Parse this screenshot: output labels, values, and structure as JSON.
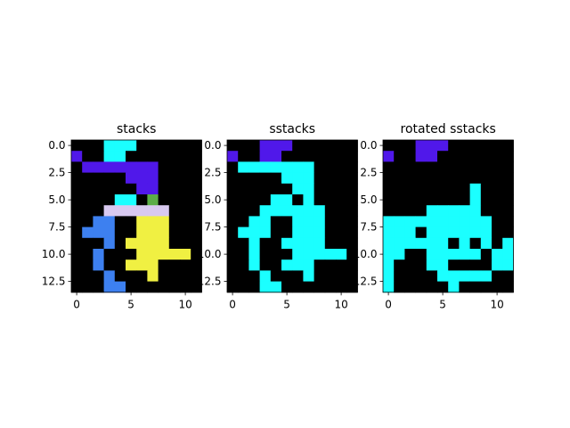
{
  "figure": {
    "background": "#ffffff"
  },
  "chart_data": [
    {
      "type": "heatmap",
      "title": "stacks",
      "xticks": [
        0,
        5,
        10
      ],
      "yticks": [
        "0.0",
        "2.5",
        "5.0",
        "7.5",
        "10.0",
        "12.5"
      ],
      "xlim": [
        -0.5,
        11.5
      ],
      "ylim": [
        13.5,
        -0.5
      ],
      "grid": false,
      "palette": [
        "#000000",
        "#5018ea",
        "#1bffff",
        "#3d80f0",
        "#f0f042",
        "#5bad47",
        "#d8c9f0"
      ],
      "matrix": [
        [
          0,
          0,
          0,
          2,
          2,
          2,
          0,
          0,
          0,
          0,
          0,
          0
        ],
        [
          1,
          0,
          0,
          2,
          2,
          0,
          0,
          0,
          0,
          0,
          0,
          0
        ],
        [
          0,
          1,
          1,
          1,
          1,
          1,
          1,
          1,
          0,
          0,
          0,
          0
        ],
        [
          0,
          0,
          0,
          0,
          0,
          1,
          1,
          1,
          0,
          0,
          0,
          0
        ],
        [
          0,
          0,
          0,
          0,
          0,
          0,
          1,
          1,
          0,
          0,
          0,
          0
        ],
        [
          0,
          0,
          0,
          0,
          2,
          2,
          0,
          5,
          0,
          0,
          0,
          0
        ],
        [
          0,
          0,
          0,
          6,
          6,
          6,
          6,
          6,
          6,
          0,
          0,
          0
        ],
        [
          0,
          0,
          3,
          3,
          0,
          0,
          4,
          4,
          4,
          0,
          0,
          0
        ],
        [
          0,
          3,
          3,
          3,
          0,
          0,
          4,
          4,
          4,
          0,
          0,
          0
        ],
        [
          0,
          0,
          0,
          3,
          0,
          4,
          4,
          4,
          4,
          0,
          0,
          0
        ],
        [
          0,
          0,
          3,
          0,
          0,
          0,
          4,
          4,
          4,
          4,
          4,
          0
        ],
        [
          0,
          0,
          3,
          0,
          0,
          4,
          4,
          4,
          0,
          0,
          0,
          0
        ],
        [
          0,
          0,
          0,
          3,
          0,
          0,
          0,
          4,
          0,
          0,
          0,
          0
        ],
        [
          0,
          0,
          0,
          3,
          3,
          0,
          0,
          0,
          0,
          0,
          0,
          0
        ]
      ]
    },
    {
      "type": "heatmap",
      "title": "sstacks",
      "xticks": [
        0,
        5,
        10
      ],
      "yticks": [
        "0.0",
        "2.5",
        "5.0",
        "7.5",
        "10.0",
        "12.5"
      ],
      "xlim": [
        -0.5,
        11.5
      ],
      "ylim": [
        13.5,
        -0.5
      ],
      "grid": false,
      "palette": [
        "#000000",
        "#5018ea",
        "#1bffff"
      ],
      "matrix": [
        [
          0,
          0,
          0,
          1,
          1,
          1,
          0,
          0,
          0,
          0,
          0,
          0
        ],
        [
          1,
          0,
          0,
          1,
          1,
          0,
          0,
          0,
          0,
          0,
          0,
          0
        ],
        [
          0,
          2,
          2,
          2,
          2,
          2,
          2,
          2,
          0,
          0,
          0,
          0
        ],
        [
          0,
          0,
          0,
          0,
          0,
          2,
          2,
          2,
          0,
          0,
          0,
          0
        ],
        [
          0,
          0,
          0,
          0,
          0,
          0,
          2,
          2,
          0,
          0,
          0,
          0
        ],
        [
          0,
          0,
          0,
          0,
          2,
          2,
          0,
          2,
          0,
          0,
          0,
          0
        ],
        [
          0,
          0,
          0,
          2,
          2,
          2,
          2,
          2,
          2,
          0,
          0,
          0
        ],
        [
          0,
          0,
          2,
          2,
          0,
          0,
          2,
          2,
          2,
          0,
          0,
          0
        ],
        [
          0,
          2,
          2,
          2,
          0,
          0,
          2,
          2,
          2,
          0,
          0,
          0
        ],
        [
          0,
          0,
          2,
          0,
          0,
          2,
          2,
          2,
          2,
          0,
          0,
          0
        ],
        [
          0,
          0,
          2,
          0,
          0,
          0,
          2,
          2,
          2,
          2,
          2,
          0
        ],
        [
          0,
          0,
          2,
          0,
          0,
          2,
          2,
          2,
          0,
          0,
          0,
          0
        ],
        [
          0,
          0,
          0,
          2,
          0,
          0,
          0,
          2,
          0,
          0,
          0,
          0
        ],
        [
          0,
          0,
          0,
          2,
          2,
          0,
          0,
          0,
          0,
          0,
          0,
          0
        ]
      ]
    },
    {
      "type": "heatmap",
      "title": "rotated sstacks",
      "xticks": [
        0,
        5,
        10
      ],
      "yticks": [
        "0.0",
        "2.5",
        "5.0",
        "7.5",
        "10.0",
        "12.5"
      ],
      "xlim": [
        -0.5,
        11.5
      ],
      "ylim": [
        13.5,
        -0.5
      ],
      "grid": false,
      "palette": [
        "#000000",
        "#5018ea",
        "#1bffff"
      ],
      "matrix": [
        [
          0,
          0,
          0,
          1,
          1,
          1,
          0,
          0,
          0,
          0,
          0,
          0
        ],
        [
          1,
          0,
          0,
          1,
          1,
          0,
          0,
          0,
          0,
          0,
          0,
          0
        ],
        [
          0,
          0,
          0,
          0,
          0,
          0,
          0,
          0,
          0,
          0,
          0,
          0
        ],
        [
          0,
          0,
          0,
          0,
          0,
          0,
          0,
          0,
          0,
          0,
          0,
          0
        ],
        [
          0,
          0,
          0,
          0,
          0,
          0,
          0,
          0,
          2,
          0,
          0,
          0
        ],
        [
          0,
          0,
          0,
          0,
          0,
          0,
          0,
          0,
          2,
          0,
          0,
          0
        ],
        [
          0,
          0,
          0,
          0,
          2,
          2,
          2,
          2,
          2,
          0,
          0,
          0
        ],
        [
          2,
          2,
          2,
          2,
          2,
          2,
          2,
          2,
          2,
          2,
          0,
          0
        ],
        [
          2,
          2,
          2,
          0,
          2,
          2,
          2,
          2,
          2,
          2,
          0,
          0
        ],
        [
          2,
          2,
          2,
          2,
          2,
          2,
          0,
          2,
          0,
          2,
          0,
          2
        ],
        [
          2,
          2,
          0,
          0,
          2,
          2,
          2,
          2,
          2,
          0,
          2,
          2
        ],
        [
          2,
          0,
          0,
          0,
          2,
          2,
          0,
          0,
          0,
          0,
          2,
          2
        ],
        [
          2,
          0,
          0,
          0,
          0,
          2,
          2,
          2,
          2,
          2,
          0,
          0
        ],
        [
          2,
          0,
          0,
          0,
          0,
          0,
          2,
          0,
          0,
          0,
          0,
          0
        ]
      ]
    }
  ]
}
